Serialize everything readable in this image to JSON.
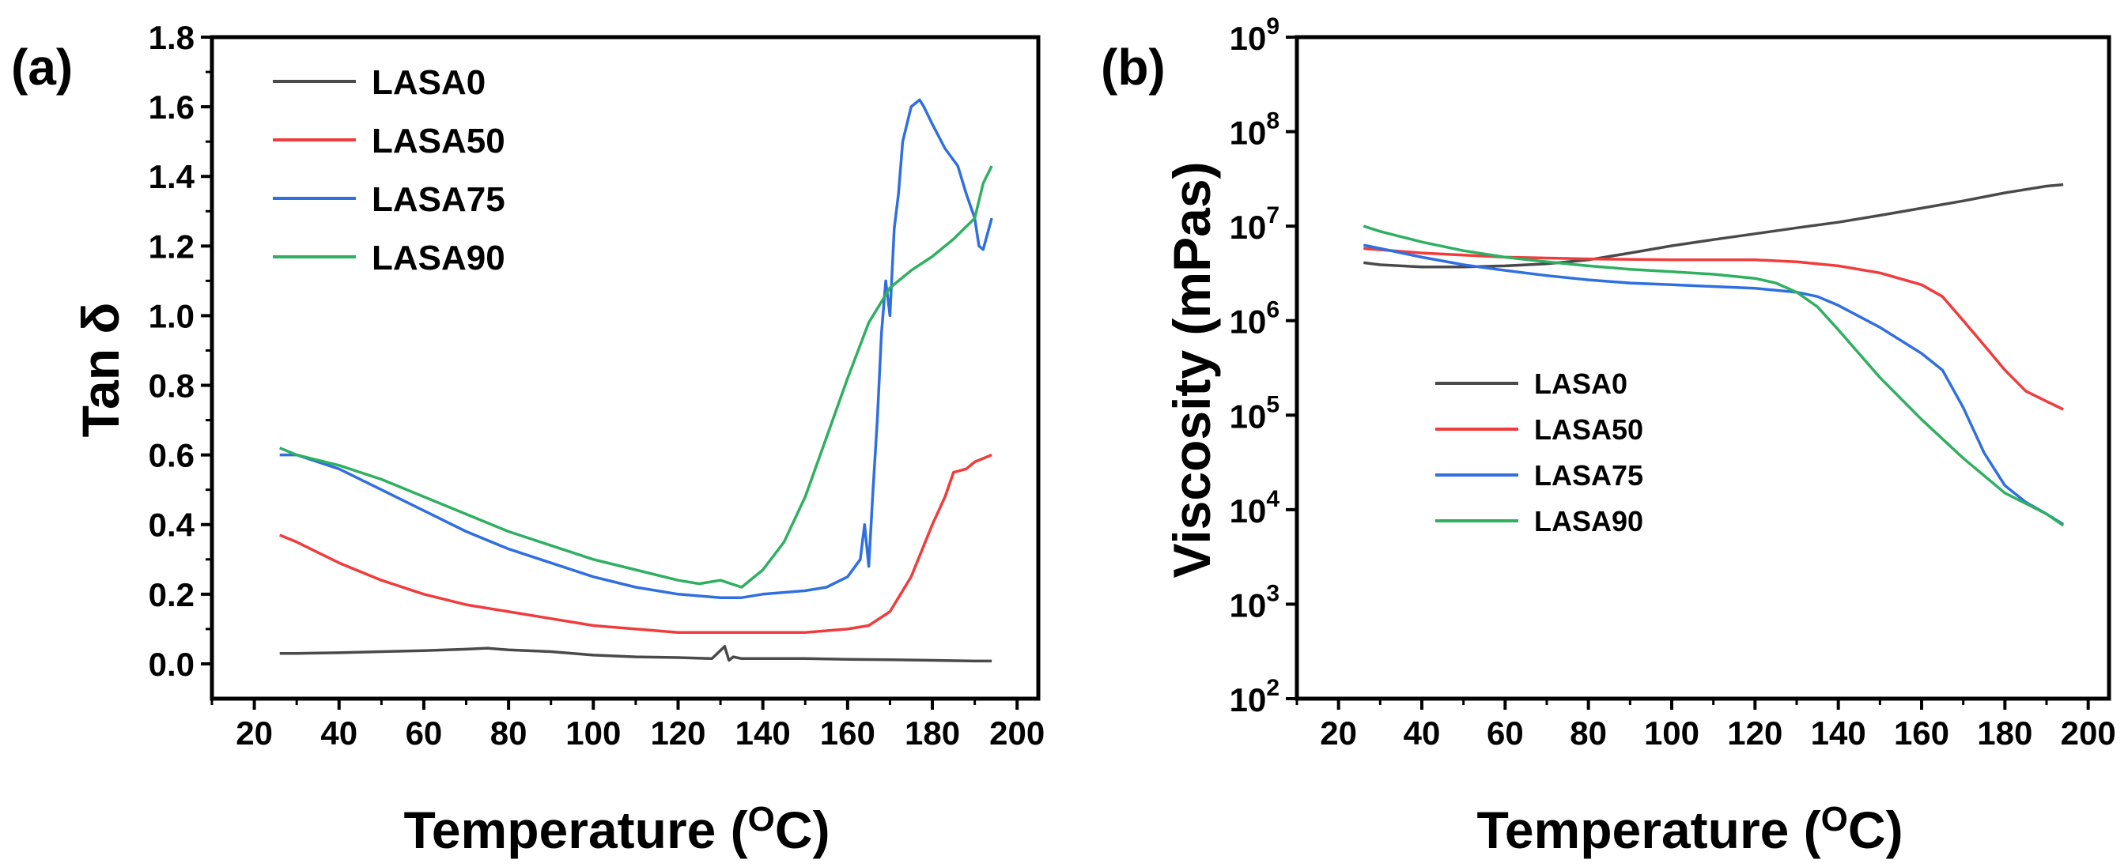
{
  "colors": {
    "LASA0": "#4a4a4a",
    "LASA50": "#f03c3c",
    "LASA75": "#2f6fe0",
    "LASA90": "#2fb060"
  },
  "chart_data": [
    {
      "panel_label": "(a)",
      "type": "line",
      "title": "",
      "xlabel_main": "Temperature (",
      "xlabel_sup": "O",
      "xlabel_end": "C)",
      "ylabel": "Tan δ",
      "xlim": [
        10,
        205
      ],
      "ylim": [
        -0.1,
        1.8
      ],
      "xticks": [
        20,
        40,
        60,
        80,
        100,
        120,
        140,
        160,
        180,
        200
      ],
      "xtick_labels": [
        "20",
        "40",
        "60",
        "80",
        "100",
        "120",
        "140",
        "160",
        "180",
        "200"
      ],
      "yticks": [
        0.0,
        0.2,
        0.4,
        0.6,
        0.8,
        1.0,
        1.2,
        1.4,
        1.6,
        1.8
      ],
      "ytick_labels": [
        "0.0",
        "0.2",
        "0.4",
        "0.6",
        "0.8",
        "1.0",
        "1.2",
        "1.4",
        "1.6",
        "1.8"
      ],
      "legend": [
        "LASA0",
        "LASA50",
        "LASA75",
        "LASA90"
      ],
      "legend_position": "top-left",
      "series": [
        {
          "name": "LASA0",
          "x": [
            26,
            30,
            40,
            50,
            60,
            70,
            75,
            80,
            90,
            100,
            110,
            120,
            128,
            131,
            132,
            133,
            135,
            140,
            150,
            160,
            170,
            180,
            190,
            194
          ],
          "y": [
            0.03,
            0.03,
            0.032,
            0.035,
            0.038,
            0.042,
            0.045,
            0.04,
            0.035,
            0.025,
            0.02,
            0.018,
            0.015,
            0.05,
            0.01,
            0.02,
            0.015,
            0.015,
            0.015,
            0.013,
            0.012,
            0.01,
            0.008,
            0.008
          ]
        },
        {
          "name": "LASA50",
          "x": [
            26,
            30,
            40,
            50,
            60,
            70,
            80,
            90,
            100,
            110,
            120,
            130,
            140,
            150,
            160,
            165,
            170,
            175,
            180,
            183,
            185,
            188,
            190,
            194
          ],
          "y": [
            0.37,
            0.35,
            0.29,
            0.24,
            0.2,
            0.17,
            0.15,
            0.13,
            0.11,
            0.1,
            0.09,
            0.09,
            0.09,
            0.09,
            0.1,
            0.11,
            0.15,
            0.25,
            0.4,
            0.48,
            0.55,
            0.56,
            0.58,
            0.6
          ]
        },
        {
          "name": "LASA75",
          "x": [
            26,
            30,
            40,
            50,
            60,
            70,
            80,
            90,
            100,
            110,
            120,
            130,
            135,
            140,
            150,
            155,
            160,
            163,
            164,
            165,
            166,
            167,
            168,
            169,
            170,
            171,
            172,
            173,
            175,
            177,
            178,
            180,
            183,
            186,
            188,
            190,
            191,
            192,
            194
          ],
          "y": [
            0.6,
            0.6,
            0.56,
            0.5,
            0.44,
            0.38,
            0.33,
            0.29,
            0.25,
            0.22,
            0.2,
            0.19,
            0.19,
            0.2,
            0.21,
            0.22,
            0.25,
            0.3,
            0.4,
            0.28,
            0.5,
            0.7,
            0.95,
            1.1,
            1.0,
            1.25,
            1.35,
            1.5,
            1.6,
            1.62,
            1.6,
            1.55,
            1.48,
            1.43,
            1.35,
            1.28,
            1.2,
            1.19,
            1.28
          ]
        },
        {
          "name": "LASA90",
          "x": [
            26,
            30,
            40,
            50,
            60,
            70,
            80,
            90,
            100,
            110,
            120,
            125,
            130,
            135,
            140,
            145,
            150,
            155,
            160,
            165,
            170,
            175,
            180,
            185,
            190,
            192,
            194
          ],
          "y": [
            0.62,
            0.6,
            0.57,
            0.53,
            0.48,
            0.43,
            0.38,
            0.34,
            0.3,
            0.27,
            0.24,
            0.23,
            0.24,
            0.22,
            0.27,
            0.35,
            0.48,
            0.65,
            0.82,
            0.98,
            1.08,
            1.13,
            1.17,
            1.22,
            1.28,
            1.38,
            1.43
          ]
        }
      ]
    },
    {
      "panel_label": "(b)",
      "type": "line",
      "yscale": "log",
      "title": "",
      "xlabel_main": "Temperature (",
      "xlabel_sup": "O",
      "xlabel_end": "C)",
      "ylabel": "Viscosity (mPas)",
      "xlim": [
        10,
        205
      ],
      "ylim": [
        100,
        1000000000
      ],
      "xticks": [
        20,
        40,
        60,
        80,
        100,
        120,
        140,
        160,
        180,
        200
      ],
      "xtick_labels": [
        "20",
        "40",
        "60",
        "80",
        "100",
        "120",
        "140",
        "160",
        "180",
        "200"
      ],
      "ytick_exponents": [
        2,
        3,
        4,
        5,
        6,
        7,
        8,
        9
      ],
      "ytick_base": "10",
      "legend": [
        "LASA0",
        "LASA50",
        "LASA75",
        "LASA90"
      ],
      "legend_position": "lower-left",
      "series": [
        {
          "name": "LASA0",
          "x": [
            26,
            30,
            40,
            50,
            60,
            70,
            80,
            90,
            100,
            110,
            120,
            130,
            140,
            150,
            160,
            170,
            180,
            190,
            194
          ],
          "y": [
            4100000,
            3900000,
            3700000,
            3700000,
            3800000,
            4000000,
            4400000,
            5200000,
            6200000,
            7200000,
            8300000,
            9600000,
            11000000,
            13000000,
            15500000,
            18500000,
            22500000,
            26500000,
            27500000
          ]
        },
        {
          "name": "LASA50",
          "x": [
            26,
            40,
            60,
            80,
            100,
            120,
            130,
            140,
            150,
            160,
            165,
            170,
            175,
            180,
            185,
            190,
            194
          ],
          "y": [
            5800000,
            5200000,
            4700000,
            4500000,
            4400000,
            4400000,
            4200000,
            3800000,
            3200000,
            2400000,
            1800000,
            1000000,
            550000,
            300000,
            180000,
            140000,
            115000
          ]
        },
        {
          "name": "LASA75",
          "x": [
            26,
            30,
            40,
            50,
            60,
            70,
            80,
            90,
            100,
            110,
            120,
            130,
            135,
            140,
            150,
            160,
            165,
            170,
            175,
            180,
            185,
            190,
            194
          ],
          "y": [
            6300000,
            5800000,
            4700000,
            3900000,
            3400000,
            3000000,
            2700000,
            2500000,
            2400000,
            2300000,
            2200000,
            2000000,
            1800000,
            1450000,
            850000,
            450000,
            300000,
            120000,
            40000,
            18000,
            12000,
            9000,
            7000
          ]
        },
        {
          "name": "LASA90",
          "x": [
            26,
            30,
            40,
            50,
            60,
            70,
            80,
            90,
            100,
            110,
            120,
            125,
            130,
            135,
            140,
            150,
            160,
            170,
            180,
            190,
            194
          ],
          "y": [
            10000000,
            8800000,
            6800000,
            5500000,
            4700000,
            4200000,
            3800000,
            3500000,
            3300000,
            3100000,
            2800000,
            2500000,
            2000000,
            1400000,
            800000,
            250000,
            90000,
            35000,
            15000,
            9000,
            6800
          ]
        }
      ]
    }
  ]
}
